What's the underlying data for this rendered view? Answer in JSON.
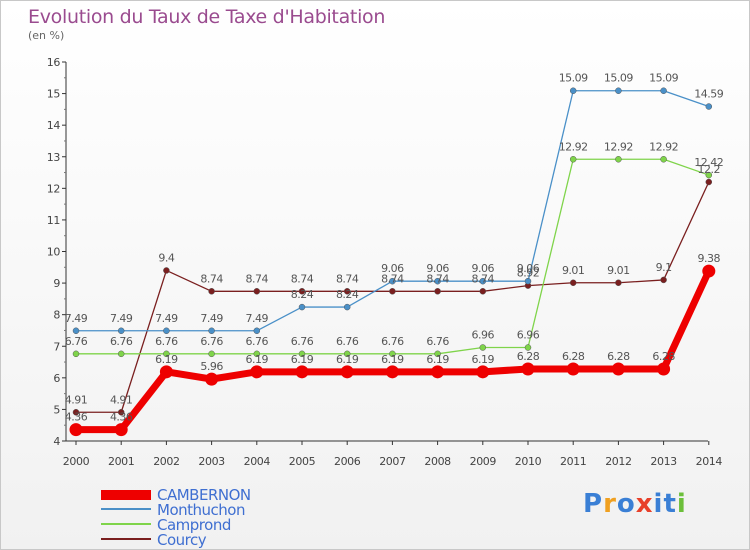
{
  "page": {
    "title": "Evolution du Taux de Taxe d'Habitation",
    "unit": "(en %)",
    "logo_letters": [
      "P",
      "r",
      "o",
      "x",
      "i",
      "t",
      "i"
    ],
    "logo_colors": [
      "#3a7fd5",
      "#f0a020",
      "#3a7fd5",
      "#e8402a",
      "#3a7fd5",
      "#3a7fd5",
      "#6cbf3a"
    ]
  },
  "chart_data": {
    "type": "line",
    "x": [
      "2000",
      "2001",
      "2002",
      "2003",
      "2004",
      "2005",
      "2006",
      "2007",
      "2008",
      "2009",
      "2010",
      "2011",
      "2012",
      "2013",
      "2014"
    ],
    "ylim": [
      4,
      16
    ],
    "yticks": [
      4,
      5,
      6,
      7,
      8,
      9,
      10,
      11,
      12,
      13,
      14,
      15,
      16
    ],
    "grid": false,
    "legend": "bottom-left",
    "series": [
      {
        "name": "CAMBERNON",
        "color": "#ee0000",
        "bold": true,
        "values": [
          4.36,
          4.36,
          6.19,
          5.96,
          6.19,
          6.19,
          6.19,
          6.19,
          6.19,
          6.19,
          6.28,
          6.28,
          6.28,
          6.28,
          9.38
        ],
        "labels": [
          "4.36",
          "4.36",
          "6.19",
          "5.96",
          "6.19",
          "6.19",
          "6.19",
          "6.19",
          "6.19",
          "6.19",
          "6.28",
          "6.28",
          "6.28",
          "6.28",
          "9.38"
        ]
      },
      {
        "name": "Monthuchon",
        "color": "#4a90c8",
        "values": [
          7.49,
          7.49,
          7.49,
          7.49,
          7.49,
          8.24,
          8.24,
          9.06,
          9.06,
          9.06,
          9.06,
          15.09,
          15.09,
          15.09,
          14.59
        ],
        "labels": [
          "7.49",
          "7.49",
          "7.49",
          "7.49",
          "7.49",
          "8.24",
          "8.24",
          "9.06",
          "9.06",
          "9.06",
          "9.06",
          "15.09",
          "15.09",
          "15.09",
          "14.59"
        ]
      },
      {
        "name": "Camprond",
        "color": "#7fd44a",
        "values": [
          6.76,
          6.76,
          6.76,
          6.76,
          6.76,
          6.76,
          6.76,
          6.76,
          6.76,
          6.96,
          6.96,
          12.92,
          12.92,
          12.92,
          12.42
        ],
        "labels": [
          "6.76",
          "6.76",
          "6.76",
          "6.76",
          "6.76",
          "6.76",
          "6.76",
          "6.76",
          "6.76",
          "6.96",
          "6.96",
          "12.92",
          "12.92",
          "12.92",
          "12.42"
        ]
      },
      {
        "name": "Courcy",
        "color": "#7a1f1f",
        "values": [
          4.91,
          4.91,
          9.4,
          8.74,
          8.74,
          8.74,
          8.74,
          8.74,
          8.74,
          8.74,
          8.92,
          9.01,
          9.01,
          9.1,
          12.2
        ],
        "labels": [
          "4.91",
          "4.91",
          "9.4",
          "8.74",
          "8.74",
          "8.74",
          "8.74",
          "8.74",
          "8.74",
          "8.74",
          "8.92",
          "9.01",
          "9.01",
          "9.1",
          "12.2"
        ]
      }
    ]
  }
}
